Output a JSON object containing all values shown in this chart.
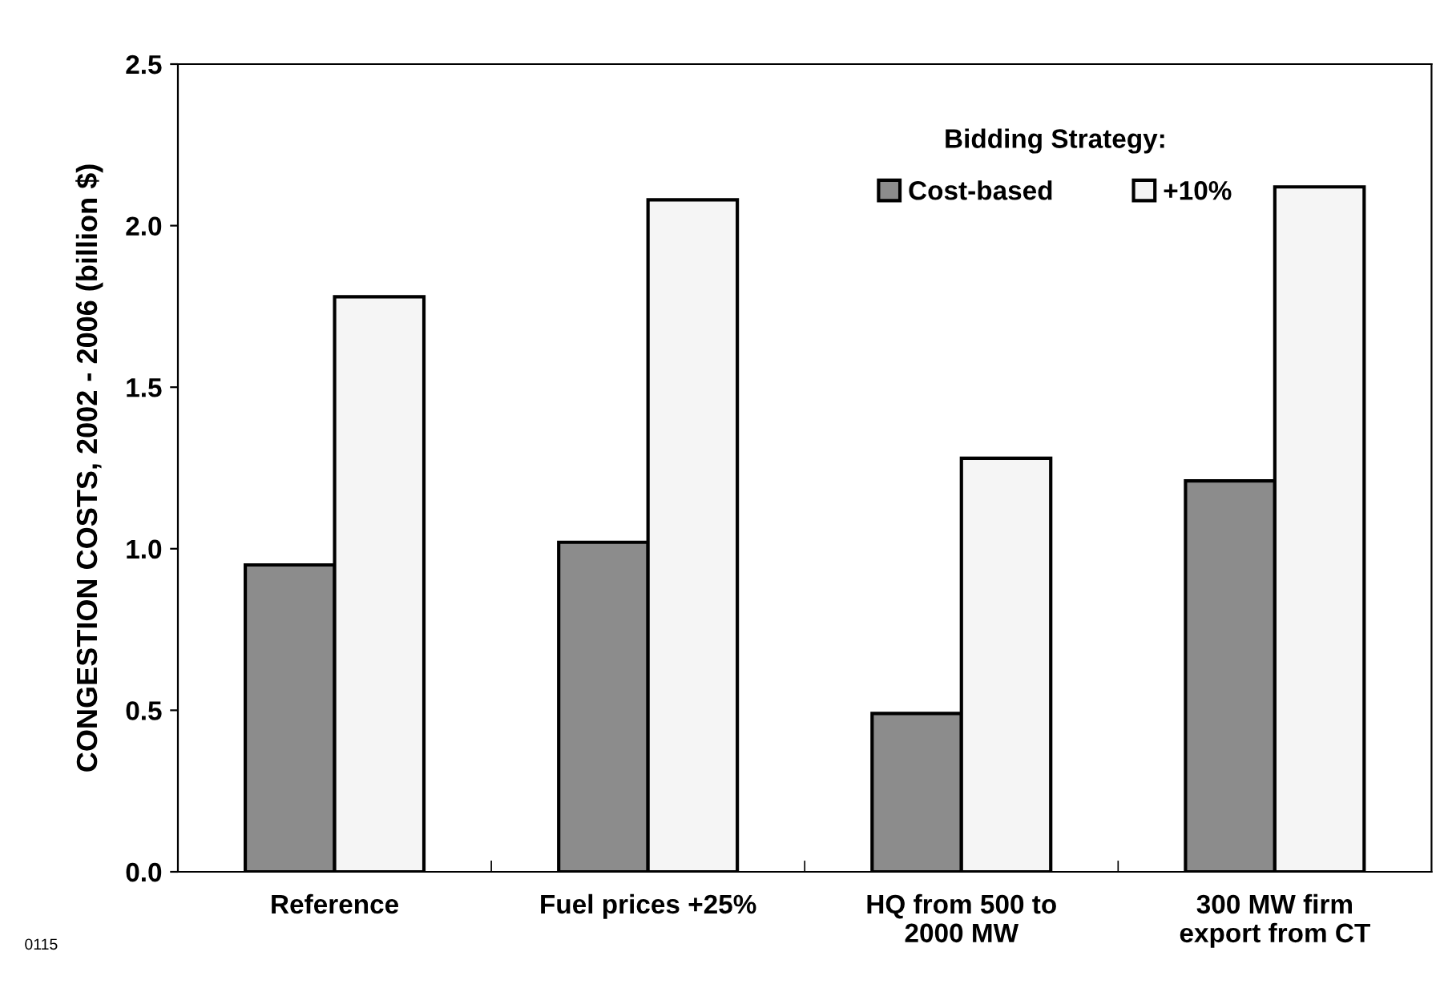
{
  "chart_data": {
    "type": "bar",
    "ylabel": "CONGESTION COSTS, 2002 - 2006 (billion $)",
    "legend_title": "Bidding Strategy:",
    "categories": [
      "Reference",
      "Fuel prices +25%",
      "HQ from 500 to\n2000 MW",
      "300 MW firm\nexport from CT"
    ],
    "series": [
      {
        "name": "Cost-based",
        "color": "#8c8c8c",
        "values": [
          0.95,
          1.02,
          0.49,
          1.21
        ]
      },
      {
        "name": "+10%",
        "color": "#f5f5f5",
        "values": [
          1.78,
          2.08,
          1.28,
          2.12
        ]
      }
    ],
    "ylim": [
      0,
      2.5
    ],
    "yticks": [
      {
        "value": 0,
        "label": "0.0"
      },
      {
        "value": 0.5,
        "label": "0.5"
      },
      {
        "value": 1,
        "label": "1.0"
      },
      {
        "value": 1.5,
        "label": "1.5"
      },
      {
        "value": 2,
        "label": "2.0"
      },
      {
        "value": 2.5,
        "label": "2.5"
      }
    ],
    "grid": false,
    "legend": "top right",
    "annotations": [
      "0115"
    ]
  }
}
